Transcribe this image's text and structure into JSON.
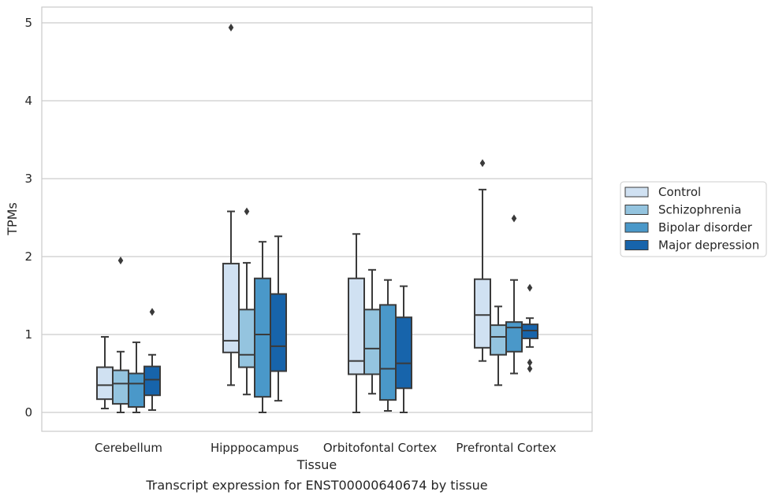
{
  "chart_data": {
    "type": "box",
    "caption": "Transcript expression for ENST00000640674 by tissue",
    "xlabel": "Tissue",
    "ylabel": "TPMs",
    "ylim": [
      -0.25,
      5.2
    ],
    "yticks": [
      0,
      1,
      2,
      3,
      4,
      5
    ],
    "grid": "horizontal",
    "legend_position": "right",
    "categories": [
      "Cerebellum",
      "Hipppocampus",
      "Orbitofontal Cortex",
      "Prefrontal Cortex"
    ],
    "series": [
      {
        "name": "Control",
        "color": "#d0e1f2",
        "boxes": [
          {
            "whisker_low": 0.05,
            "q1": 0.17,
            "median": 0.35,
            "q3": 0.58,
            "whisker_high": 0.97,
            "outliers": []
          },
          {
            "whisker_low": 0.35,
            "q1": 0.77,
            "median": 0.92,
            "q3": 1.91,
            "whisker_high": 2.58,
            "outliers": [
              4.94
            ]
          },
          {
            "whisker_low": 0.0,
            "q1": 0.49,
            "median": 0.66,
            "q3": 1.72,
            "whisker_high": 2.29,
            "outliers": []
          },
          {
            "whisker_low": 0.66,
            "q1": 0.83,
            "median": 1.25,
            "q3": 1.71,
            "whisker_high": 2.86,
            "outliers": [
              3.2
            ]
          }
        ]
      },
      {
        "name": "Schizophrenia",
        "color": "#94c4df",
        "boxes": [
          {
            "whisker_low": 0.0,
            "q1": 0.11,
            "median": 0.37,
            "q3": 0.54,
            "whisker_high": 0.78,
            "outliers": [
              1.95
            ]
          },
          {
            "whisker_low": 0.23,
            "q1": 0.58,
            "median": 0.74,
            "q3": 1.32,
            "whisker_high": 1.92,
            "outliers": [
              2.58
            ]
          },
          {
            "whisker_low": 0.24,
            "q1": 0.49,
            "median": 0.82,
            "q3": 1.32,
            "whisker_high": 1.83,
            "outliers": []
          },
          {
            "whisker_low": 0.35,
            "q1": 0.74,
            "median": 0.97,
            "q3": 1.12,
            "whisker_high": 1.36,
            "outliers": []
          }
        ]
      },
      {
        "name": "Bipolar disorder",
        "color": "#4a98c9",
        "boxes": [
          {
            "whisker_low": 0.0,
            "q1": 0.07,
            "median": 0.37,
            "q3": 0.5,
            "whisker_high": 0.9,
            "outliers": []
          },
          {
            "whisker_low": 0.0,
            "q1": 0.2,
            "median": 1.0,
            "q3": 1.72,
            "whisker_high": 2.19,
            "outliers": []
          },
          {
            "whisker_low": 0.02,
            "q1": 0.16,
            "median": 0.56,
            "q3": 1.38,
            "whisker_high": 1.7,
            "outliers": []
          },
          {
            "whisker_low": 0.5,
            "q1": 0.78,
            "median": 1.09,
            "q3": 1.16,
            "whisker_high": 1.7,
            "outliers": [
              2.49
            ]
          }
        ]
      },
      {
        "name": "Major depression",
        "color": "#1764ab",
        "boxes": [
          {
            "whisker_low": 0.03,
            "q1": 0.22,
            "median": 0.42,
            "q3": 0.59,
            "whisker_high": 0.74,
            "outliers": [
              1.29
            ]
          },
          {
            "whisker_low": 0.15,
            "q1": 0.53,
            "median": 0.85,
            "q3": 1.52,
            "whisker_high": 2.26,
            "outliers": []
          },
          {
            "whisker_low": 0.0,
            "q1": 0.31,
            "median": 0.63,
            "q3": 1.22,
            "whisker_high": 1.62,
            "outliers": []
          },
          {
            "whisker_low": 0.84,
            "q1": 0.95,
            "median": 1.05,
            "q3": 1.13,
            "whisker_high": 1.21,
            "outliers": [
              1.6,
              0.64,
              0.56
            ]
          }
        ]
      }
    ]
  }
}
